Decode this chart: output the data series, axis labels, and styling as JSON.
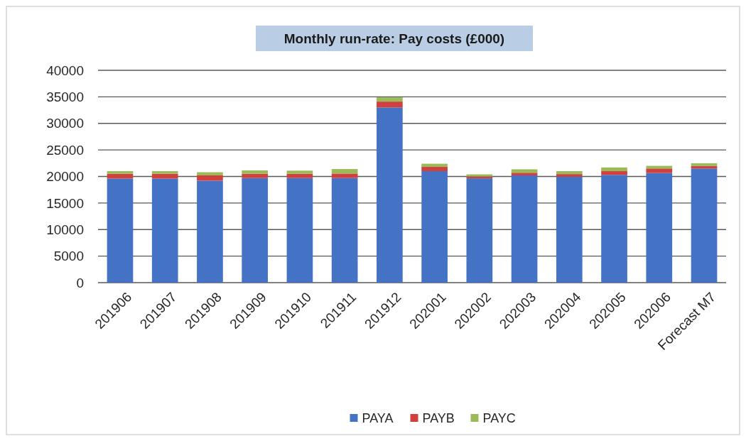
{
  "chart_data": {
    "type": "bar",
    "title": "Monthly run-rate: Pay costs (£000)",
    "stacked": true,
    "categories": [
      "201906",
      "201907",
      "201908",
      "201909",
      "201910",
      "201911",
      "201912",
      "202001",
      "202002",
      "202003",
      "202004",
      "202005",
      "202006",
      "Forecast M7"
    ],
    "series": [
      {
        "name": "PAYA",
        "color": "#4472c4",
        "values": [
          19600,
          19600,
          19200,
          19700,
          19700,
          19700,
          33000,
          21000,
          19650,
          20200,
          19950,
          20300,
          20650,
          21500
        ]
      },
      {
        "name": "PAYB",
        "color": "#d0403e",
        "values": [
          900,
          900,
          1000,
          800,
          800,
          850,
          1100,
          800,
          350,
          500,
          500,
          700,
          850,
          500
        ]
      },
      {
        "name": "PAYC",
        "color": "#9bbb59",
        "values": [
          500,
          500,
          600,
          650,
          600,
          850,
          800,
          600,
          400,
          650,
          550,
          700,
          500,
          500
        ]
      }
    ],
    "ylim": [
      0,
      40000
    ],
    "yticks": [
      0,
      5000,
      10000,
      15000,
      20000,
      25000,
      30000,
      35000,
      40000
    ],
    "grid": "y",
    "legend": "bottom"
  }
}
